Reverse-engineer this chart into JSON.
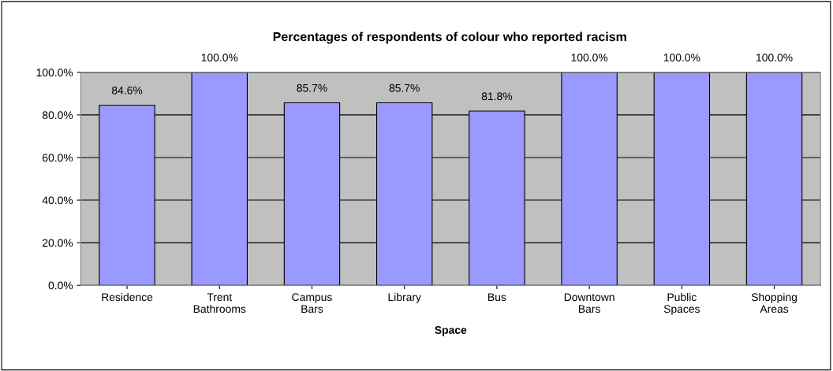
{
  "chart_data": {
    "type": "bar",
    "title": "Percentages of respondents of colour who reported racism",
    "xlabel": "Space",
    "categories": [
      "Residence",
      "Trent\nBathrooms",
      "Campus\nBars",
      "Library",
      "Bus",
      "Downtown\nBars",
      "Public\nSpaces",
      "Shopping\nAreas"
    ],
    "values": [
      84.6,
      100.0,
      85.7,
      85.7,
      81.8,
      100.0,
      100.0,
      100.0
    ],
    "value_labels": [
      "84.6%",
      "100.0%",
      "85.7%",
      "85.7%",
      "81.8%",
      "100.0%",
      "100.0%",
      "100.0%"
    ],
    "color": "#9999ff",
    "ylim": [
      0,
      100
    ],
    "yticks": [
      {
        "value": 0,
        "label": "0.0%"
      },
      {
        "value": 20,
        "label": "20.0%"
      },
      {
        "value": 40,
        "label": "40.0%"
      },
      {
        "value": 60,
        "label": "60.0%"
      },
      {
        "value": 80,
        "label": "80.0%"
      },
      {
        "value": 100,
        "label": "100.0%"
      }
    ],
    "grid": "y"
  }
}
